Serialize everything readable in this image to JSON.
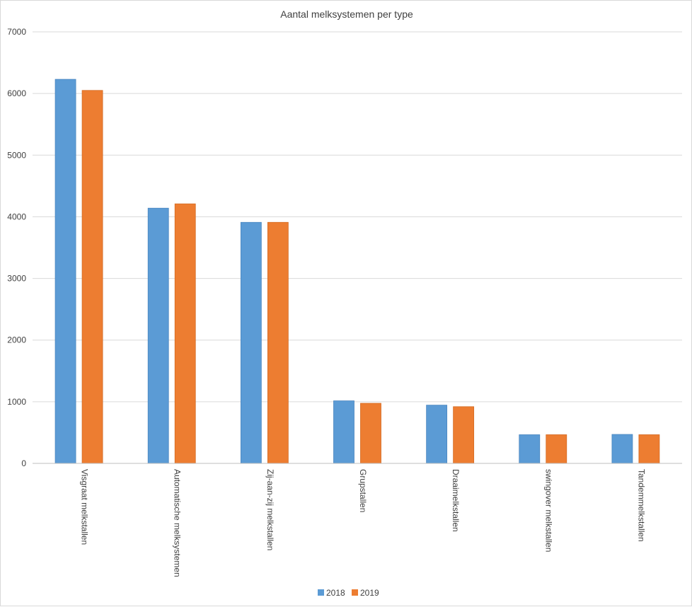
{
  "chart_data": {
    "type": "bar",
    "title": "Aantal melksystemen per type",
    "xlabel": "",
    "ylabel": "",
    "ylim": [
      0,
      7000
    ],
    "yticks": [
      0,
      1000,
      2000,
      3000,
      4000,
      5000,
      6000,
      7000
    ],
    "grid": true,
    "legend_position": "bottom",
    "categories": [
      "Visgraat melkstallen",
      "Automatische melksystemen",
      "Zij-aan-zij melkstallen",
      "Grupstallen",
      "Draaimelkstallen",
      "swingover melkstallen",
      "Tandemmelkstallen"
    ],
    "series": [
      {
        "name": "2018",
        "color": "#5b9bd5",
        "values": [
          6230,
          4140,
          3910,
          1015,
          945,
          465,
          470
        ]
      },
      {
        "name": "2019",
        "color": "#ed7d31",
        "values": [
          6050,
          4210,
          3910,
          975,
          920,
          465,
          465
        ]
      }
    ]
  }
}
